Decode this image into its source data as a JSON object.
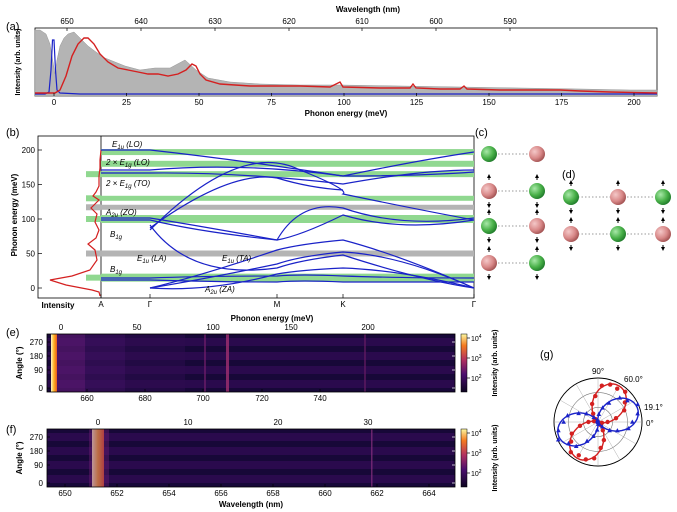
{
  "panel_a": {
    "letter": "(a)",
    "top_axis_label": "Wavelength (nm)",
    "top_ticks": [
      "650",
      "640",
      "630",
      "620",
      "610",
      "600",
      "590"
    ],
    "bottom_axis_label": "Phonon energy (meV)",
    "bottom_ticks": [
      "0",
      "25",
      "50",
      "75",
      "100",
      "125",
      "150",
      "175",
      "200"
    ],
    "ylabel": "Intensity (arb. units)"
  },
  "panel_b": {
    "letter": "(b)",
    "ylabel": "Phonon energy (meV)",
    "yticks": [
      "0",
      "50",
      "100",
      "150",
      "200"
    ],
    "intensity_label": "Intensity",
    "kpoints": [
      "A",
      "Γ",
      "M",
      "K",
      "Γ"
    ],
    "xlabel": "Phonon energy (meV)",
    "mode_labels": [
      {
        "main": "E",
        "sub": "1u",
        "suffix": " (LO)"
      },
      {
        "main": "2 × E",
        "sub": "1g",
        "suffix": " (LO)"
      },
      {
        "main": "2 × E",
        "sub": "1g",
        "suffix": " (TO)"
      },
      {
        "main": "A",
        "sub": "2u",
        "suffix": " (ZO)"
      },
      {
        "main": "B",
        "sub": "1g",
        "suffix": ""
      },
      {
        "main": "E",
        "sub": "1u",
        "suffix": " (LA)"
      },
      {
        "main": "E",
        "sub": "1u",
        "suffix": " (TA)"
      },
      {
        "main": "B",
        "sub": "1g",
        "suffix": ""
      },
      {
        "main": "A",
        "sub": "2u",
        "suffix": " (ZA)"
      }
    ]
  },
  "panel_c": {
    "letter": "(c)"
  },
  "panel_d": {
    "letter": "(d)"
  },
  "panel_e": {
    "letter": "(e)",
    "ylabel": "Angle (°)",
    "yticks": [
      "270",
      "180",
      "90",
      "0"
    ],
    "top_ticks": [
      "0",
      "50",
      "100",
      "150",
      "200"
    ],
    "bottom_ticks": [
      "660",
      "680",
      "700",
      "720",
      "740"
    ],
    "cbar_label": "Intensity (arb. units)",
    "cbar_ticks": [
      {
        "b": "10",
        "e": "4"
      },
      {
        "b": "10",
        "e": "3"
      },
      {
        "b": "10",
        "e": "2"
      }
    ]
  },
  "panel_f": {
    "letter": "(f)",
    "ylabel": "Angle (°)",
    "yticks": [
      "270",
      "180",
      "90",
      "0"
    ],
    "top_ticks": [
      "0",
      "10",
      "20",
      "30"
    ],
    "bottom_ticks": [
      "650",
      "652",
      "654",
      "656",
      "658",
      "660",
      "662",
      "664"
    ],
    "xlabel": "Wavelength (nm)",
    "cbar_label": "Intensity (arb. units)",
    "cbar_ticks": [
      {
        "b": "10",
        "e": "4"
      },
      {
        "b": "10",
        "e": "3"
      },
      {
        "b": "10",
        "e": "2"
      }
    ]
  },
  "panel_g": {
    "letter": "(g)",
    "angle_labels": [
      "90°",
      "60.0°",
      "19.1°",
      "0°"
    ]
  },
  "colors": {
    "red": "#d42020",
    "blue": "#1a22c8",
    "gray": "#b4b4b4",
    "green": "#90d890"
  }
}
